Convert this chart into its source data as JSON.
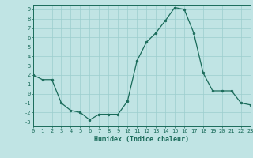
{
  "x": [
    0,
    1,
    2,
    3,
    4,
    5,
    6,
    7,
    8,
    9,
    10,
    11,
    12,
    13,
    14,
    15,
    16,
    17,
    18,
    19,
    20,
    21,
    22,
    23
  ],
  "y": [
    2,
    1.5,
    1.5,
    -1,
    -1.8,
    -2,
    -2.8,
    -2.2,
    -2.2,
    -2.2,
    -0.8,
    3.5,
    5.5,
    6.5,
    7.8,
    9.2,
    9.0,
    6.5,
    2.2,
    0.3,
    0.3,
    0.3,
    -1.0,
    -1.2
  ],
  "xlabel": "Humidex (Indice chaleur)",
  "xlim": [
    0,
    23
  ],
  "ylim": [
    -3.5,
    9.5
  ],
  "yticks": [
    -3,
    -2,
    -1,
    0,
    1,
    2,
    3,
    4,
    5,
    6,
    7,
    8,
    9
  ],
  "xticks": [
    0,
    1,
    2,
    3,
    4,
    5,
    6,
    7,
    8,
    9,
    10,
    11,
    12,
    13,
    14,
    15,
    16,
    17,
    18,
    19,
    20,
    21,
    22,
    23
  ],
  "line_color": "#1a6b5a",
  "marker_color": "#1a6b5a",
  "bg_color": "#c0e4e4",
  "grid_color": "#9ccece",
  "label_color": "#1a6b5a",
  "tick_color": "#1a6b5a",
  "tick_fontsize": 5.0,
  "xlabel_fontsize": 6.0
}
